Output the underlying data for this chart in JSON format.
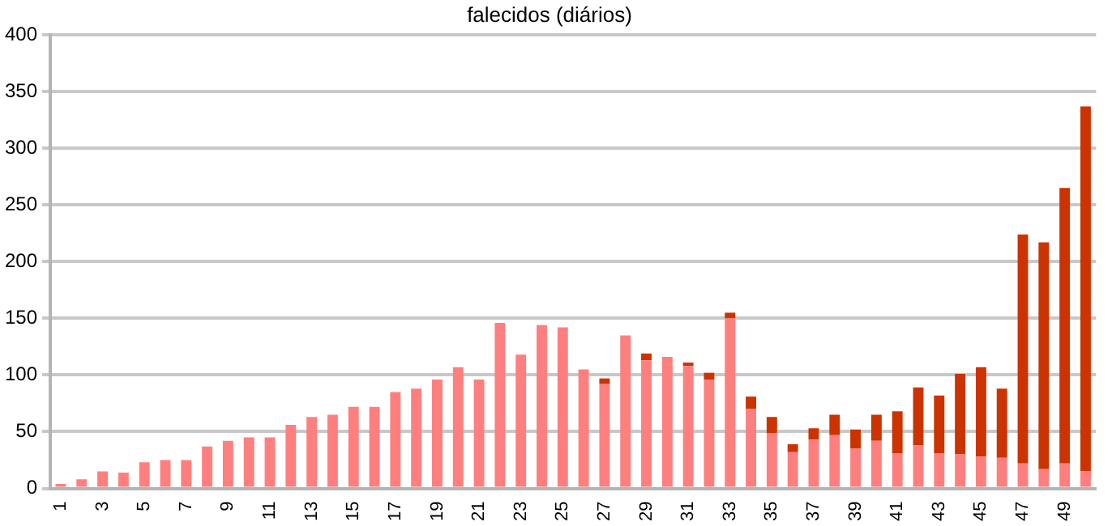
{
  "chart_data": {
    "type": "bar",
    "title": "falecidos (diários)",
    "categories": [
      "1",
      null,
      "3",
      null,
      "5",
      null,
      "7",
      null,
      "9",
      null,
      "11",
      null,
      "13",
      null,
      "15",
      null,
      "17",
      null,
      "19",
      null,
      "21",
      null,
      "23",
      null,
      "25",
      null,
      "27",
      null,
      "29",
      null,
      "31",
      null,
      "33",
      null,
      "35",
      null,
      "37",
      null,
      "39",
      null,
      "41",
      null,
      "43",
      null,
      "45",
      null,
      "47",
      null,
      "49",
      null
    ],
    "stacked": true,
    "series": [
      {
        "color": "#ff7f7f",
        "values": [
          4,
          8,
          15,
          14,
          23,
          25,
          25,
          37,
          42,
          45,
          45,
          56,
          63,
          65,
          72,
          72,
          85,
          88,
          96,
          107,
          96,
          146,
          118,
          144,
          142,
          105,
          92,
          135,
          113,
          116,
          108,
          96,
          150,
          70,
          49,
          32,
          43,
          47,
          35,
          42,
          31,
          38,
          31,
          30,
          28,
          27,
          22,
          17,
          22,
          15
        ]
      },
      {
        "color": "#cc3300",
        "values": [
          0,
          0,
          0,
          0,
          0,
          0,
          0,
          0,
          0,
          0,
          0,
          0,
          0,
          0,
          0,
          0,
          0,
          0,
          0,
          0,
          0,
          0,
          0,
          0,
          0,
          0,
          5,
          0,
          6,
          0,
          3,
          6,
          5,
          11,
          14,
          7,
          10,
          18,
          17,
          23,
          37,
          51,
          51,
          71,
          79,
          61,
          202,
          200,
          243,
          322
        ]
      }
    ],
    "ylim": [
      0,
      400
    ],
    "yticks": [
      0,
      50,
      100,
      150,
      200,
      250,
      300,
      350,
      400
    ],
    "grid": "y",
    "legend": false
  }
}
